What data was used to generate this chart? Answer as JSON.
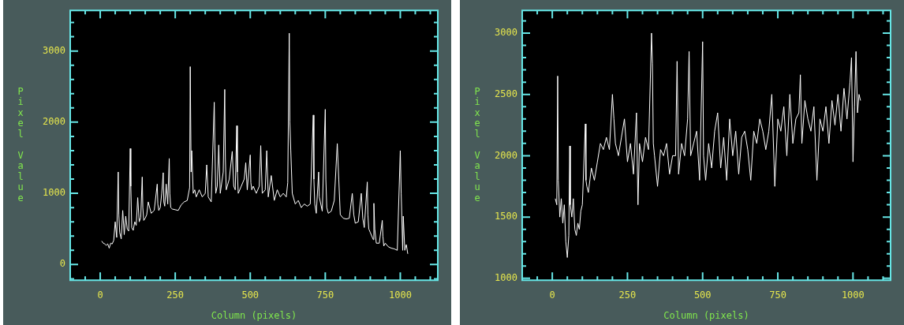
{
  "chart_data": [
    {
      "type": "line",
      "xlabel": "Column (pixels)",
      "ylabel": "Pixel Value",
      "xlim": [
        -100,
        1125
      ],
      "ylim": [
        -220,
        3570
      ],
      "xticks": [
        0,
        {
          "value": -50,
          "label": null
        },
        {
          "value": 50,
          "label": null
        },
        {
          "value": 100,
          "label": null
        },
        {
          "value": 150,
          "label": null
        },
        {
          "value": 200,
          "label": null
        },
        250,
        {
          "value": 300,
          "label": null
        },
        {
          "value": 350,
          "label": null
        },
        {
          "value": 400,
          "label": null
        },
        {
          "value": 450,
          "label": null
        },
        500,
        {
          "value": 550,
          "label": null
        },
        {
          "value": 600,
          "label": null
        },
        {
          "value": 650,
          "label": null
        },
        {
          "value": 700,
          "label": null
        },
        750,
        {
          "value": 800,
          "label": null
        },
        {
          "value": 850,
          "label": null
        },
        {
          "value": 900,
          "label": null
        },
        {
          "value": 950,
          "label": null
        },
        1000,
        {
          "value": 1050,
          "label": null
        },
        {
          "value": 1100,
          "label": null
        }
      ],
      "yticks": [
        0,
        {
          "value": -200,
          "label": null
        },
        {
          "value": 200,
          "label": null
        },
        {
          "value": 400,
          "label": null
        },
        {
          "value": 600,
          "label": null
        },
        {
          "value": 800,
          "label": null
        },
        1000,
        {
          "value": 1200,
          "label": null
        },
        {
          "value": 1400,
          "label": null
        },
        {
          "value": 1600,
          "label": null
        },
        {
          "value": 1800,
          "label": null
        },
        2000,
        {
          "value": 2200,
          "label": null
        },
        {
          "value": 2400,
          "label": null
        },
        {
          "value": 2600,
          "label": null
        },
        {
          "value": 2800,
          "label": null
        },
        3000,
        {
          "value": 3200,
          "label": null
        },
        {
          "value": 3400,
          "label": null
        }
      ],
      "series": [
        {
          "color": "#ffffff",
          "x": [
            5,
            10,
            15,
            20,
            25,
            30,
            35,
            40,
            45,
            50,
            55,
            60,
            62,
            65,
            70,
            75,
            80,
            85,
            90,
            95,
            100,
            102,
            105,
            110,
            115,
            120,
            125,
            130,
            135,
            140,
            142,
            145,
            150,
            155,
            160,
            170,
            180,
            190,
            192,
            195,
            200,
            205,
            210,
            212,
            215,
            220,
            225,
            230,
            232,
            235,
            240,
            250,
            260,
            270,
            280,
            290,
            298,
            300,
            303,
            305,
            310,
            315,
            320,
            330,
            340,
            350,
            355,
            360,
            370,
            380,
            382,
            385,
            390,
            395,
            400,
            410,
            415,
            417,
            420,
            430,
            440,
            445,
            450,
            455,
            457,
            460,
            470,
            480,
            485,
            490,
            500,
            502,
            505,
            510,
            520,
            530,
            535,
            540,
            550,
            555,
            560,
            570,
            580,
            590,
            600,
            610,
            620,
            625,
            630,
            632,
            635,
            640,
            650,
            660,
            670,
            680,
            690,
            700,
            710,
            712,
            715,
            720,
            728,
            730,
            740,
            750,
            752,
            755,
            760,
            770,
            780,
            790,
            795,
            800,
            810,
            820,
            830,
            840,
            845,
            850,
            860,
            870,
            875,
            880,
            890,
            892,
            895,
            900,
            910,
            912,
            915,
            920,
            930,
            940,
            942,
            945,
            950,
            960,
            970,
            980,
            990,
            1000,
            1003,
            1008,
            1010,
            1015,
            1020,
            1025
          ],
          "values": [
            330,
            300,
            290,
            270,
            290,
            230,
            300,
            290,
            340,
            600,
            380,
            1300,
            700,
            450,
            360,
            760,
            420,
            680,
            500,
            470,
            1630,
            1100,
            520,
            480,
            600,
            550,
            940,
            600,
            660,
            1230,
            800,
            620,
            650,
            700,
            880,
            720,
            760,
            1130,
            850,
            760,
            800,
            1000,
            1290,
            880,
            820,
            1130,
            850,
            1490,
            1000,
            800,
            780,
            770,
            760,
            840,
            880,
            900,
            1080,
            2780,
            1300,
            1600,
            1000,
            1050,
            950,
            1050,
            950,
            1000,
            1400,
            950,
            880,
            2280,
            1700,
            1000,
            1100,
            1680,
            1000,
            1300,
            2460,
            1500,
            1050,
            1200,
            1590,
            1100,
            1050,
            1950,
            1300,
            1000,
            1100,
            1200,
            1430,
            1050,
            1540,
            1150,
            1050,
            1100,
            1000,
            1100,
            1670,
            1000,
            1050,
            1600,
            950,
            1250,
            900,
            1050,
            950,
            1000,
            950,
            1150,
            3250,
            2000,
            1610,
            1000,
            850,
            900,
            800,
            850,
            820,
            850,
            2100,
            1200,
            850,
            720,
            1300,
            950,
            750,
            2180,
            1200,
            800,
            720,
            750,
            900,
            1700,
            1200,
            700,
            650,
            640,
            650,
            1000,
            700,
            580,
            600,
            1000,
            650,
            520,
            1160,
            700,
            500,
            450,
            350,
            860,
            500,
            300,
            300,
            620,
            400,
            260,
            300,
            250,
            230,
            220,
            200,
            1600,
            1000,
            200,
            680,
            200,
            280,
            150
          ]
        }
      ]
    },
    {
      "type": "line",
      "xlabel": "Column (pixels)",
      "ylabel": "Pixel Value",
      "xlim": [
        -100,
        1125
      ],
      "ylim": [
        985,
        3185
      ],
      "xticks": [
        0,
        {
          "value": -50,
          "label": null
        },
        {
          "value": 50,
          "label": null
        },
        {
          "value": 100,
          "label": null
        },
        {
          "value": 150,
          "label": null
        },
        {
          "value": 200,
          "label": null
        },
        250,
        {
          "value": 300,
          "label": null
        },
        {
          "value": 350,
          "label": null
        },
        {
          "value": 400,
          "label": null
        },
        {
          "value": 450,
          "label": null
        },
        500,
        {
          "value": 550,
          "label": null
        },
        {
          "value": 600,
          "label": null
        },
        {
          "value": 650,
          "label": null
        },
        {
          "value": 700,
          "label": null
        },
        750,
        {
          "value": 800,
          "label": null
        },
        {
          "value": 850,
          "label": null
        },
        {
          "value": 900,
          "label": null
        },
        {
          "value": 950,
          "label": null
        },
        1000,
        {
          "value": 1050,
          "label": null
        },
        {
          "value": 1100,
          "label": null
        }
      ],
      "yticks": [
        1000,
        {
          "value": 1100,
          "label": null
        },
        {
          "value": 1200,
          "label": null
        },
        {
          "value": 1300,
          "label": null
        },
        {
          "value": 1400,
          "label": null
        },
        1500,
        {
          "value": 1600,
          "label": null
        },
        {
          "value": 1700,
          "label": null
        },
        {
          "value": 1800,
          "label": null
        },
        {
          "value": 1900,
          "label": null
        },
        2000,
        {
          "value": 2100,
          "label": null
        },
        {
          "value": 2200,
          "label": null
        },
        {
          "value": 2300,
          "label": null
        },
        {
          "value": 2400,
          "label": null
        },
        2500,
        {
          "value": 2600,
          "label": null
        },
        {
          "value": 2700,
          "label": null
        },
        {
          "value": 2800,
          "label": null
        },
        {
          "value": 2900,
          "label": null
        },
        3000,
        {
          "value": 3100,
          "label": null
        }
      ],
      "series": [
        {
          "color": "#ffffff",
          "x": [
            10,
            15,
            18,
            20,
            25,
            30,
            35,
            40,
            45,
            50,
            55,
            58,
            60,
            65,
            70,
            75,
            80,
            85,
            90,
            95,
            100,
            110,
            112,
            115,
            120,
            130,
            140,
            150,
            160,
            170,
            180,
            190,
            200,
            205,
            210,
            220,
            230,
            240,
            250,
            260,
            270,
            280,
            285,
            290,
            300,
            310,
            320,
            330,
            333,
            336,
            340,
            350,
            360,
            370,
            380,
            390,
            400,
            410,
            415,
            420,
            430,
            440,
            450,
            455,
            460,
            470,
            480,
            490,
            500,
            503,
            510,
            520,
            530,
            540,
            550,
            560,
            570,
            580,
            590,
            600,
            610,
            620,
            630,
            640,
            650,
            660,
            670,
            680,
            690,
            700,
            710,
            720,
            730,
            740,
            750,
            760,
            770,
            780,
            790,
            800,
            810,
            820,
            825,
            830,
            840,
            850,
            860,
            870,
            880,
            890,
            900,
            910,
            920,
            930,
            940,
            950,
            960,
            970,
            980,
            990,
            995,
            1000,
            1005,
            1010,
            1015,
            1020,
            1025
          ],
          "values": [
            1650,
            1600,
            2650,
            1800,
            1500,
            1650,
            1450,
            1600,
            1300,
            1170,
            1350,
            2080,
            1600,
            1500,
            1650,
            1400,
            1350,
            1450,
            1400,
            1550,
            1600,
            2260,
            1800,
            1750,
            1700,
            1900,
            1800,
            1950,
            2100,
            2050,
            2150,
            2050,
            2500,
            2300,
            2100,
            2000,
            2150,
            2300,
            1950,
            2100,
            1850,
            2350,
            1600,
            2100,
            1950,
            2150,
            2050,
            3000,
            2750,
            2100,
            2000,
            1750,
            2050,
            2000,
            2100,
            1850,
            2000,
            2000,
            2770,
            1850,
            2100,
            2000,
            2300,
            2850,
            2000,
            2100,
            2200,
            1800,
            2930,
            2000,
            1800,
            2100,
            1900,
            2200,
            2350,
            1900,
            2150,
            1800,
            2300,
            2000,
            2200,
            1850,
            2150,
            2200,
            2050,
            1800,
            2200,
            2100,
            2300,
            2200,
            2050,
            2200,
            2500,
            1750,
            2300,
            2200,
            2400,
            2000,
            2500,
            2100,
            2300,
            2350,
            2660,
            2100,
            2450,
            2300,
            2200,
            2400,
            1800,
            2300,
            2200,
            2400,
            2100,
            2450,
            2250,
            2500,
            2200,
            2550,
            2300,
            2600,
            2800,
            1950,
            2400,
            2850,
            2350,
            2500,
            2450
          ]
        }
      ]
    }
  ]
}
